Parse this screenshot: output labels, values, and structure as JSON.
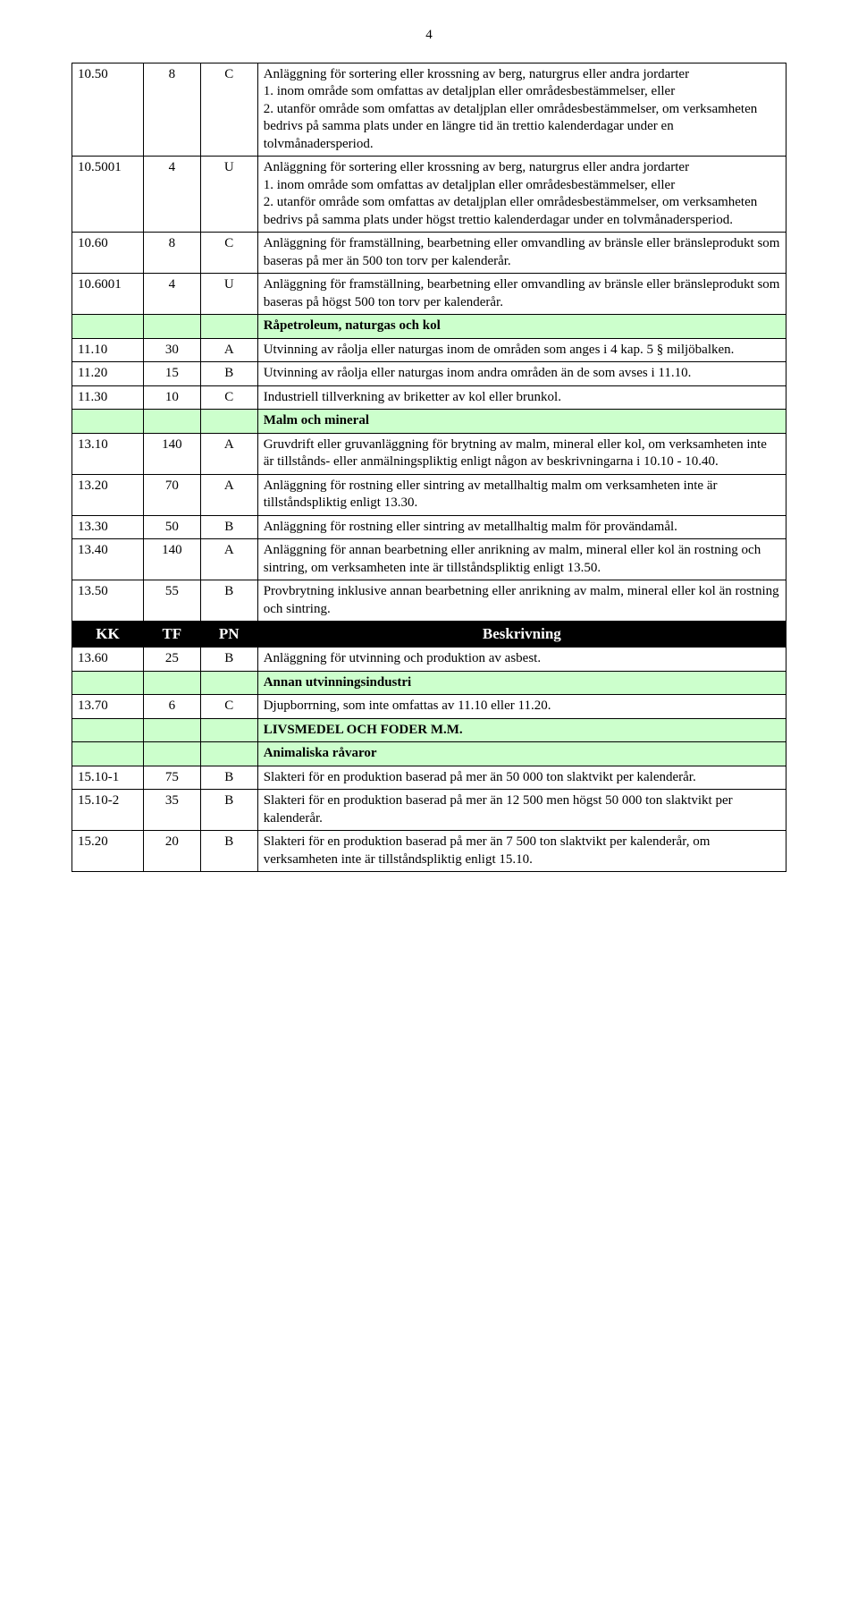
{
  "page_number": "4",
  "colors": {
    "section_bg": "#ccffcc",
    "header_bg": "#000000",
    "header_fg": "#ffffff",
    "border": "#000000",
    "page_bg": "#ffffff",
    "text": "#000000"
  },
  "column_widths_pct": [
    10,
    8,
    8,
    74
  ],
  "header_labels": {
    "c1": "KK",
    "c2": "TF",
    "c3": "PN",
    "c4": "Beskrivning"
  },
  "rows": [
    {
      "type": "data",
      "c1": "10.50",
      "c2": "8",
      "c3": "C",
      "c4": "Anläggning för sortering eller krossning av berg, naturgrus eller andra jordarter\n1. inom område som omfattas av detaljplan eller områdesbestämmelser, eller\n2. utanför område som omfattas av detaljplan eller områdesbestämmelser, om verksamheten bedrivs på samma plats under en längre tid än trettio kalenderdagar under en tolvmånadersperiod."
    },
    {
      "type": "data",
      "c1": "10.5001",
      "c2": "4",
      "c3": "U",
      "c4": "Anläggning för sortering eller krossning av berg, naturgrus eller andra jordarter\n1. inom område som omfattas av detaljplan eller områdesbestämmelser, eller\n2. utanför område som omfattas av detaljplan eller områdesbestämmelser, om verksamheten bedrivs på samma plats under högst trettio kalenderdagar under en tolvmånadersperiod."
    },
    {
      "type": "data",
      "c1": "10.60",
      "c2": "8",
      "c3": "C",
      "c4": "Anläggning för framställning, bearbetning eller omvandling av bränsle eller bränsleprodukt som baseras på mer än 500 ton torv per kalenderår."
    },
    {
      "type": "data",
      "c1": "10.6001",
      "c2": "4",
      "c3": "U",
      "c4": "Anläggning för framställning, bearbetning eller omvandling av bränsle eller bränsleprodukt som baseras på högst 500 ton torv per kalenderår."
    },
    {
      "type": "section",
      "c4": "Råpetroleum, naturgas och kol"
    },
    {
      "type": "data",
      "c1": "11.10",
      "c2": "30",
      "c3": "A",
      "c4": "Utvinning av råolja eller naturgas inom de områden som anges i 4 kap. 5 § miljöbalken."
    },
    {
      "type": "data",
      "c1": "11.20",
      "c2": "15",
      "c3": "B",
      "c4": "Utvinning av råolja eller naturgas inom andra områden än de som avses i 11.10."
    },
    {
      "type": "data",
      "c1": "11.30",
      "c2": "10",
      "c3": "C",
      "c4": "Industriell tillverkning av briketter av kol eller brunkol."
    },
    {
      "type": "section",
      "c4": "Malm och mineral"
    },
    {
      "type": "data",
      "c1": "13.10",
      "c2": "140",
      "c3": "A",
      "c4": "Gruvdrift eller gruvanläggning för brytning av malm, mineral eller kol, om verksamheten inte är tillstånds- eller anmälningspliktig enligt någon av beskrivningarna i 10.10 - 10.40."
    },
    {
      "type": "data",
      "c1": "13.20",
      "c2": "70",
      "c3": "A",
      "c4": "Anläggning för rostning eller sintring av metallhaltig malm om verksamheten inte är tillståndspliktig enligt 13.30."
    },
    {
      "type": "data",
      "c1": "13.30",
      "c2": "50",
      "c3": "B",
      "c4": "Anläggning för rostning eller sintring av metallhaltig malm för provändamål."
    },
    {
      "type": "data",
      "c1": "13.40",
      "c2": "140",
      "c3": "A",
      "c4": "Anläggning för annan bearbetning eller anrikning av malm, mineral eller kol än rostning och sintring, om verksamheten inte är tillståndspliktig enligt 13.50."
    },
    {
      "type": "data",
      "c1": "13.50",
      "c2": "55",
      "c3": "B",
      "c4": "Provbrytning inklusive annan bearbetning eller anrikning av malm, mineral eller kol än rostning och sintring."
    },
    {
      "type": "header"
    },
    {
      "type": "data",
      "c1": "13.60",
      "c2": "25",
      "c3": "B",
      "c4": "Anläggning för utvinning och produktion av asbest."
    },
    {
      "type": "section",
      "c4": "Annan utvinningsindustri"
    },
    {
      "type": "data",
      "c1": "13.70",
      "c2": "6",
      "c3": "C",
      "c4": "Djupborrning, som inte omfattas av 11.10 eller 11.20."
    },
    {
      "type": "section",
      "c4": "LIVSMEDEL OCH FODER M.M."
    },
    {
      "type": "section",
      "c4": "Animaliska råvaror"
    },
    {
      "type": "data",
      "c1": "15.10-1",
      "c2": "75",
      "c3": "B",
      "c4": "Slakteri för en produktion baserad på mer än 50 000 ton slaktvikt per kalenderår."
    },
    {
      "type": "data",
      "c1": "15.10-2",
      "c2": "35",
      "c3": "B",
      "c4": "Slakteri för en produktion baserad på mer än 12 500 men högst 50 000 ton slaktvikt per kalenderår."
    },
    {
      "type": "data",
      "c1": "15.20",
      "c2": "20",
      "c3": "B",
      "c4": "Slakteri för en produktion baserad på mer än 7 500 ton slaktvikt per kalenderår, om verksamheten inte är tillståndspliktig enligt 15.10."
    }
  ]
}
